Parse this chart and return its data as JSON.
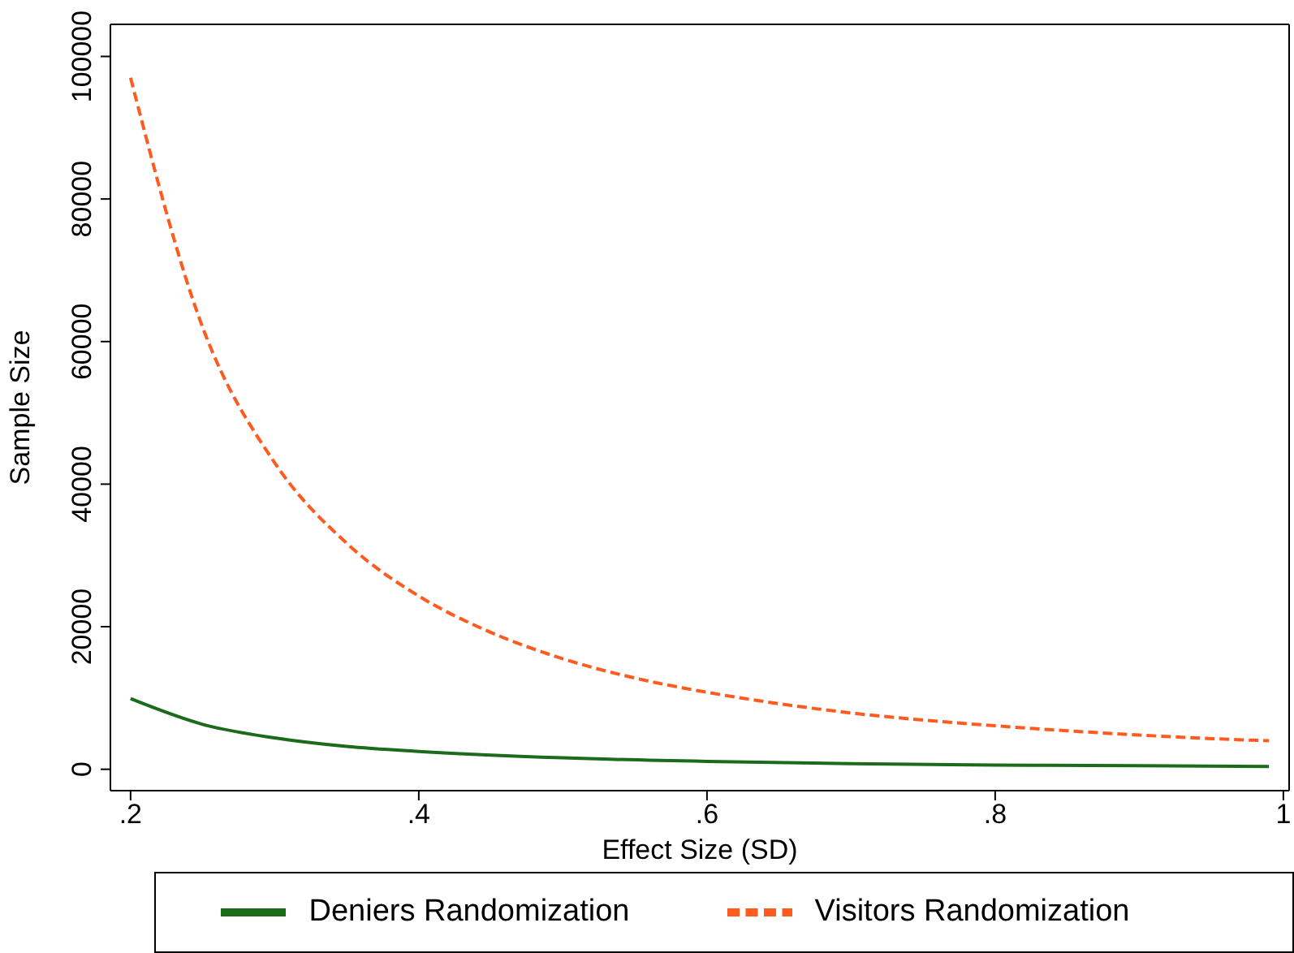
{
  "chart_data": {
    "type": "line",
    "xlabel": "Effect Size (SD)",
    "ylabel": "Sample Size",
    "xlim": [
      0.186,
      1.004
    ],
    "xticks": [
      {
        "value": 0.2,
        "label": ".2"
      },
      {
        "value": 0.4,
        "label": ".4"
      },
      {
        "value": 0.6,
        "label": ".6"
      },
      {
        "value": 0.8,
        "label": ".8"
      },
      1
    ],
    "ylim": [
      -3000,
      104500
    ],
    "yticks": [
      0,
      20000,
      40000,
      60000,
      80000,
      100000
    ],
    "legend": "bottom",
    "marker": "none",
    "series": [
      {
        "name": "Deniers Randomization",
        "color": "#1a6b1a",
        "line_style": "solid",
        "x": [
          0.2,
          0.25,
          0.3,
          0.35,
          0.4,
          0.5,
          0.6,
          0.7,
          0.8,
          0.9,
          0.99
        ],
        "values": [
          9900,
          6300,
          4400,
          3200,
          2500,
          1600,
          1100,
          800,
          600,
          500,
          400
        ]
      },
      {
        "name": "Visitors Randomization",
        "color": "#ff5a1f",
        "line_style": "dashed",
        "x": [
          0.2,
          0.25,
          0.3,
          0.35,
          0.4,
          0.45,
          0.5,
          0.55,
          0.6,
          0.65,
          0.7,
          0.75,
          0.8,
          0.85,
          0.9,
          0.95,
          0.99
        ],
        "values": [
          97000,
          62000,
          43000,
          31700,
          24300,
          19200,
          15500,
          12800,
          10800,
          9200,
          7900,
          6900,
          6100,
          5400,
          4800,
          4300,
          4000
        ]
      }
    ]
  }
}
